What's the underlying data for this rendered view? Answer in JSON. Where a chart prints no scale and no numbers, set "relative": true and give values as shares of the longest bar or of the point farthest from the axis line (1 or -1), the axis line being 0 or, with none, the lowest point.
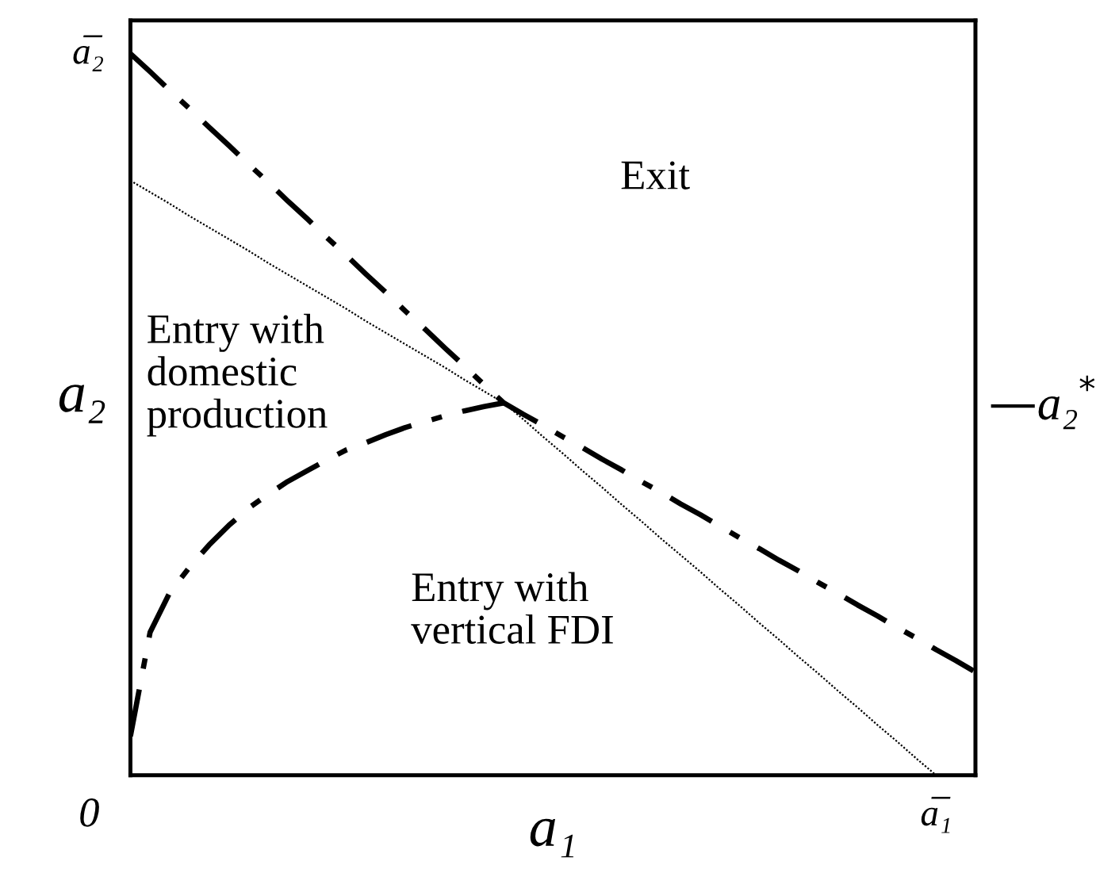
{
  "chart_data": {
    "type": "line",
    "relative": true,
    "xlabel": "a₁",
    "ylabel": "a₂",
    "tick_labels": false,
    "marker": "none",
    "categories": [
      null,
      null,
      null,
      null,
      null,
      null,
      null,
      null,
      null,
      null,
      null,
      null,
      null,
      null,
      null,
      null,
      null,
      null,
      null,
      null,
      null,
      null,
      null,
      null,
      null,
      null,
      null,
      null,
      null,
      null,
      null,
      null,
      null,
      null,
      null,
      null,
      null,
      null,
      null,
      null,
      null,
      null,
      null,
      null
    ],
    "series": [
      {
        "color": "#000000",
        "line_style": "dashdot",
        "values": [
          1,
          0.975,
          0.949,
          0.924,
          0.898,
          0.873,
          0.847,
          0.822,
          0.796,
          0.771,
          0.745,
          0.72,
          0.694,
          0.669,
          0.643,
          0.618,
          0.592,
          0.567,
          0.541,
          0.516,
          0.5,
          0.485,
          0.469,
          0.454,
          0.438,
          0.423,
          0.407,
          0.392,
          0.376,
          0.361,
          0.345,
          0.329,
          0.314,
          0.298,
          0.283,
          0.267,
          0.252,
          0.236,
          0.221,
          0.205,
          0.19,
          0.174,
          0.159,
          0.143
        ]
      },
      {
        "color": "#000000",
        "line_style": "dotted",
        "values": [
          0.824,
          0.808,
          0.792,
          0.775,
          0.759,
          0.743,
          0.727,
          0.71,
          0.694,
          0.678,
          0.662,
          0.646,
          0.629,
          0.613,
          0.597,
          0.581,
          0.565,
          0.548,
          0.532,
          0.516,
          0.493,
          0.469,
          0.446,
          0.422,
          0.399,
          0.375,
          0.352,
          0.328,
          0.305,
          0.282,
          0.258,
          0.235,
          0.211,
          0.188,
          0.164,
          0.141,
          0.117,
          0.094,
          0.07,
          0.047,
          0.023,
          0,
          null,
          null
        ]
      },
      {
        "color": "#000000",
        "line_style": "dashdot",
        "values": [
          0.054,
          0.198,
          0.253,
          0.288,
          0.319,
          0.346,
          0.37,
          0.389,
          0.407,
          0.422,
          0.437,
          0.451,
          0.461,
          0.472,
          0.482,
          0.49,
          0.498,
          0.505,
          0.511,
          0.516,
          null,
          null,
          null,
          null,
          null,
          null,
          null,
          null,
          null,
          null,
          null,
          null,
          null,
          null,
          null,
          null,
          null,
          null,
          null,
          null,
          null,
          null,
          null,
          null
        ]
      }
    ],
    "annotations": [
      "Exit",
      "Entry with\ndomestic\nproduction",
      "Entry with\nvertical FDI",
      "a̅₂",
      "a̅₁",
      "0",
      "—a₂$^{*}$"
    ]
  }
}
